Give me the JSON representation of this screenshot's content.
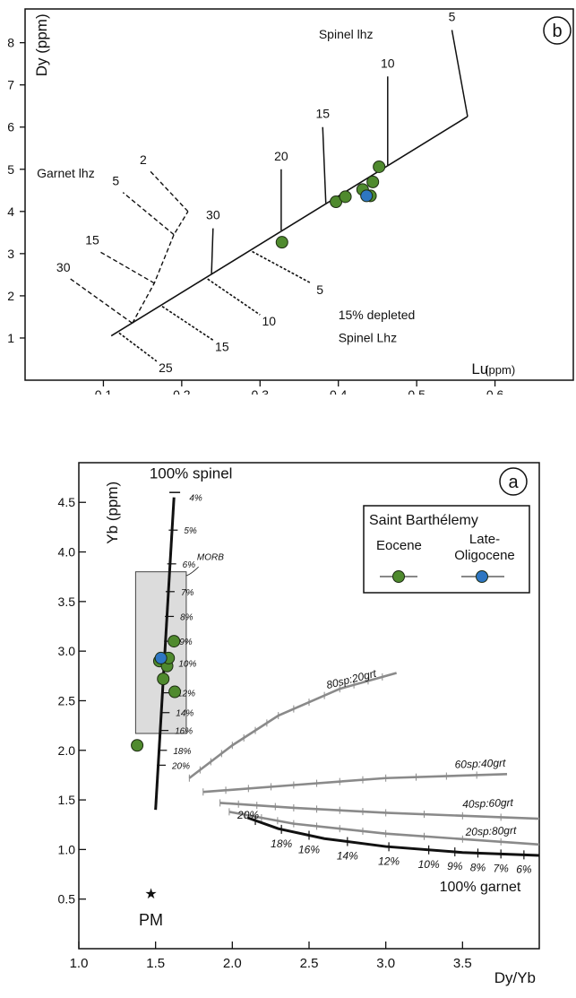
{
  "chart_data": [
    {
      "panel_label": "b",
      "type": "scatter",
      "xlabel": "Lu",
      "xlabel_unit": "(ppm)",
      "ylabel": "Dy (ppm)",
      "xlim": [
        0,
        0.7
      ],
      "ylim": [
        0,
        8.8
      ],
      "xticks": [
        "0.1",
        "0.2",
        "0.3",
        "0.4",
        "0.5",
        "0.6"
      ],
      "yticks": [
        "1",
        "2",
        "3",
        "4",
        "5",
        "6",
        "7",
        "8"
      ],
      "mixing_line": [
        [
          0.11,
          1.05
        ],
        [
          0.565,
          6.25
        ]
      ],
      "spinel_trend": {
        "label": "Spinel lhz",
        "path": [
          [
            0.565,
            6.25
          ],
          [
            0.545,
            8.3
          ]
        ],
        "ticks": [
          {
            "label": "5",
            "base": [
              0.565,
              6.25
            ],
            "top": [
              0.545,
              8.3
            ]
          },
          {
            "label": "10",
            "base": [
              0.463,
              5.1
            ],
            "top": [
              0.463,
              7.2
            ]
          },
          {
            "label": "15",
            "base": [
              0.384,
              4.2
            ],
            "top": [
              0.38,
              6.0
            ]
          },
          {
            "label": "20",
            "base": [
              0.327,
              3.55
            ],
            "top": [
              0.327,
              5.0
            ]
          },
          {
            "label": "30",
            "base": [
              0.238,
              2.5
            ],
            "top": [
              0.24,
              3.6
            ]
          }
        ]
      },
      "garnet_trend": {
        "label": "Garnet lhz",
        "path": [
          [
            0.137,
            1.35
          ],
          [
            0.165,
            2.3
          ],
          [
            0.19,
            3.45
          ],
          [
            0.208,
            4.0
          ]
        ],
        "branches": [
          {
            "label": "2",
            "from": [
              0.208,
              4.0
            ],
            "to": [
              0.16,
              4.95
            ]
          },
          {
            "label": "5",
            "from": [
              0.19,
              3.45
            ],
            "to": [
              0.125,
              4.45
            ]
          },
          {
            "label": "15",
            "from": [
              0.165,
              2.3
            ],
            "to": [
              0.095,
              3.05
            ]
          },
          {
            "label": "30",
            "from": [
              0.137,
              1.35
            ],
            "to": [
              0.058,
              2.4
            ]
          }
        ]
      },
      "depleted_trend": {
        "label_line1": "15% depleted",
        "label_line2": "Spinel Lhz",
        "branches": [
          {
            "label": "5",
            "from": [
              0.29,
              3.05
            ],
            "to": [
              0.365,
              2.3
            ]
          },
          {
            "label": "10",
            "from": [
              0.233,
              2.4
            ],
            "to": [
              0.3,
              1.55
            ]
          },
          {
            "label": "15",
            "from": [
              0.175,
              1.75
            ],
            "to": [
              0.24,
              0.95
            ]
          },
          {
            "label": "25",
            "from": [
              0.12,
              1.12
            ],
            "to": [
              0.168,
              0.45
            ]
          }
        ]
      },
      "series": [
        {
          "name": "Eocene",
          "color": "#4f8a2e",
          "points": [
            [
              0.328,
              3.27
            ],
            [
              0.397,
              4.23
            ],
            [
              0.409,
              4.35
            ],
            [
              0.431,
              4.52
            ],
            [
              0.441,
              4.37
            ],
            [
              0.444,
              4.7
            ],
            [
              0.452,
              5.06
            ]
          ]
        },
        {
          "name": "Late-Oligocene",
          "color": "#2e76c2",
          "points": [
            [
              0.436,
              4.37
            ]
          ]
        }
      ]
    },
    {
      "panel_label": "a",
      "type": "scatter",
      "xlabel": "Dy/Yb",
      "ylabel": "Yb (ppm)",
      "xlim": [
        1.0,
        4.0
      ],
      "ylim": [
        0.0,
        4.9
      ],
      "xticks": [
        "1.0",
        "1.5",
        "2.0",
        "2.5",
        "3.0",
        "3.5"
      ],
      "yticks": [
        "0.5",
        "1.0",
        "1.5",
        "2.0",
        "2.5",
        "3.0",
        "3.5",
        "4.0",
        "4.5"
      ],
      "spinel_curve": {
        "label": "100% spinel",
        "path": [
          [
            1.62,
            4.55
          ],
          [
            1.5,
            1.4
          ]
        ],
        "top_cap": "4%",
        "ticks": [
          {
            "label": "5%",
            "x": 1.615,
            "y": 4.22
          },
          {
            "label": "6%",
            "x": 1.605,
            "y": 3.88
          },
          {
            "label": "7%",
            "x": 1.595,
            "y": 3.6
          },
          {
            "label": "8%",
            "x": 1.59,
            "y": 3.35
          },
          {
            "label": "9%",
            "x": 1.585,
            "y": 3.1
          },
          {
            "label": "10%",
            "x": 1.58,
            "y": 2.88
          },
          {
            "label": "12%",
            "x": 1.572,
            "y": 2.58
          },
          {
            "label": "14%",
            "x": 1.562,
            "y": 2.38
          },
          {
            "label": "16%",
            "x": 1.555,
            "y": 2.2
          },
          {
            "label": "18%",
            "x": 1.545,
            "y": 2.0
          },
          {
            "label": "20%",
            "x": 1.537,
            "y": 1.85
          }
        ]
      },
      "morb_box": {
        "label": "MORB",
        "x0": 1.37,
        "x1": 1.7,
        "y0": 2.17,
        "y1": 3.8
      },
      "mixing_curves": [
        {
          "label": "80sp:20grt",
          "points": [
            [
              1.72,
              1.72
            ],
            [
              2.0,
              2.05
            ],
            [
              2.3,
              2.35
            ],
            [
              2.7,
              2.62
            ],
            [
              3.07,
              2.78
            ]
          ]
        },
        {
          "label": "60sp:40grt",
          "points": [
            [
              1.81,
              1.58
            ],
            [
              2.4,
              1.65
            ],
            [
              3.0,
              1.72
            ],
            [
              3.79,
              1.76
            ]
          ]
        },
        {
          "label": "40sp:60grt",
          "points": [
            [
              1.92,
              1.47
            ],
            [
              2.4,
              1.42
            ],
            [
              3.0,
              1.37
            ],
            [
              4.0,
              1.31
            ]
          ]
        },
        {
          "label": "20sp:80grt",
          "points": [
            [
              1.98,
              1.38
            ],
            [
              2.4,
              1.26
            ],
            [
              3.0,
              1.16
            ],
            [
              4.0,
              1.05
            ]
          ]
        }
      ],
      "garnet_curve": {
        "label": "100% garnet",
        "points": [
          [
            2.1,
            1.32
          ],
          [
            2.3,
            1.21
          ],
          [
            2.6,
            1.11
          ],
          [
            3.0,
            1.03
          ],
          [
            3.5,
            0.97
          ],
          [
            4.0,
            0.94
          ]
        ],
        "ticks": [
          "20%",
          "18%",
          "16%",
          "14%",
          "12%",
          "10%",
          "9%",
          "8%",
          "7%",
          "6%"
        ]
      },
      "pm_point": {
        "label": "PM",
        "x": 1.47,
        "y": 0.56
      },
      "legend": {
        "title": "Saint Barthélemy",
        "entries": [
          {
            "label": "Eocene",
            "color": "#4f8a2e"
          },
          {
            "label_line1": "Late-",
            "label_line2": "Oligocene",
            "color": "#2e76c2"
          }
        ],
        "position": "top-right"
      },
      "series": [
        {
          "name": "Eocene",
          "color": "#4f8a2e",
          "points": [
            [
              1.38,
              2.05
            ],
            [
              1.525,
              2.9
            ],
            [
              1.55,
              2.72
            ],
            [
              1.575,
              2.85
            ],
            [
              1.585,
              2.93
            ],
            [
              1.62,
              3.1
            ],
            [
              1.625,
              2.59
            ]
          ]
        },
        {
          "name": "Late-Oligocene",
          "color": "#2e76c2",
          "points": [
            [
              1.535,
              2.93
            ]
          ]
        }
      ]
    }
  ]
}
